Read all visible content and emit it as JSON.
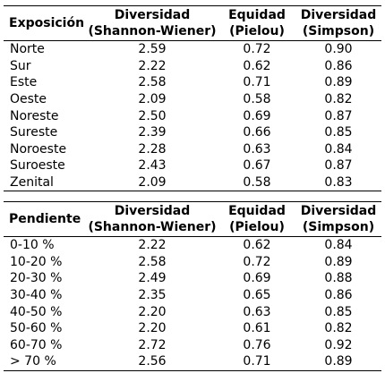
{
  "exposicion_table": {
    "headers": {
      "first": "Exposición",
      "col1_line1": "Diversidad",
      "col1_line2": "(Shannon-Wiener)",
      "col2_line1": "Equidad",
      "col2_line2": "(Pielou)",
      "col3_line1": "Diversidad",
      "col3_line2": "(Simpson)"
    },
    "rows": [
      {
        "label": "Norte",
        "shannon": "2.59",
        "pielou": "0.72",
        "simpson": "0.90"
      },
      {
        "label": "Sur",
        "shannon": "2.22",
        "pielou": "0.62",
        "simpson": "0.86"
      },
      {
        "label": "Este",
        "shannon": "2.58",
        "pielou": "0.71",
        "simpson": "0.89"
      },
      {
        "label": "Oeste",
        "shannon": "2.09",
        "pielou": "0.58",
        "simpson": "0.82"
      },
      {
        "label": "Noreste",
        "shannon": "2.50",
        "pielou": "0.69",
        "simpson": "0.87"
      },
      {
        "label": "Sureste",
        "shannon": "2.39",
        "pielou": "0.66",
        "simpson": "0.85"
      },
      {
        "label": "Noroeste",
        "shannon": "2.28",
        "pielou": "0.63",
        "simpson": "0.84"
      },
      {
        "label": "Suroeste",
        "shannon": "2.43",
        "pielou": "0.67",
        "simpson": "0.87"
      },
      {
        "label": "Zenital",
        "shannon": "2.09",
        "pielou": "0.58",
        "simpson": "0.83"
      }
    ]
  },
  "pendiente_table": {
    "headers": {
      "first": "Pendiente",
      "col1_line1": "Diversidad",
      "col1_line2": "(Shannon-Wiener)",
      "col2_line1": "Equidad",
      "col2_line2": "(Pielou)",
      "col3_line1": "Diversidad",
      "col3_line2": "(Simpson)"
    },
    "rows": [
      {
        "label": "0-10 %",
        "shannon": "2.22",
        "pielou": "0.62",
        "simpson": "0.84"
      },
      {
        "label": "10-20 %",
        "shannon": "2.58",
        "pielou": "0.72",
        "simpson": "0.89"
      },
      {
        "label": "20-30 %",
        "shannon": "2.49",
        "pielou": "0.69",
        "simpson": "0.88"
      },
      {
        "label": "30-40 %",
        "shannon": "2.35",
        "pielou": "0.65",
        "simpson": "0.86"
      },
      {
        "label": "40-50 %",
        "shannon": "2.20",
        "pielou": "0.63",
        "simpson": "0.85"
      },
      {
        "label": "50-60 %",
        "shannon": "2.20",
        "pielou": "0.61",
        "simpson": "0.82"
      },
      {
        "label": "60-70 %",
        "shannon": "2.72",
        "pielou": "0.76",
        "simpson": "0.92"
      },
      {
        "label": "> 70 %",
        "shannon": "2.56",
        "pielou": "0.71",
        "simpson": "0.89"
      }
    ]
  }
}
